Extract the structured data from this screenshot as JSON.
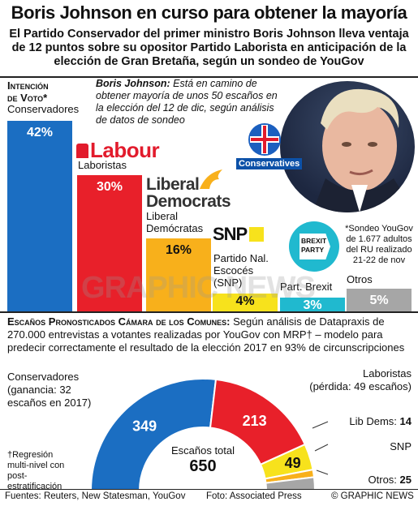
{
  "header": {
    "title": "Boris Johnson en curso para obtener la mayoría",
    "subtitle": "El Partido Conservador del primer ministro Boris Johnson lleva ventaja de 12 puntos sobre su opositor Partido Laborista en anticipación de la elección de Gran Bretaña, según un sondeo de YouGov"
  },
  "poll": {
    "label_line1": "Intención",
    "label_line2": "de Voto*",
    "quote_name": "Boris Johnson:",
    "quote_text": "Está en camino de obtener mayoría de unos 50 escaños en la elección del 12 de dic, según análisis de datos de sondeo",
    "footnote": "*Sondeo YouGov de 1.677 adultos del RU realizado 21-22 de nov",
    "photo_caption": "Conservatives"
  },
  "logos": {
    "labour": "Labour",
    "libdem_line1": "Liberal",
    "libdem_line2": "Democrats",
    "snp": "SNP",
    "brexit_line1": "BREXIT",
    "brexit_line2": "PARTY"
  },
  "seats": {
    "label": "Escaños Pronosticados Cámara de los Comunes:",
    "desc_inline": "Según análisis de",
    "desc_rest": "Datapraxis de 270.000 entrevistas a votantes realizadas por YouGov con MRP† – modelo para predecir correctamente el resultado de la elección 2017 en 93% de circunscripciones",
    "con_note": "Conservadores (ganancia: 32 escaños en 2017)",
    "lab_name": "Laboristas",
    "lab_note": "(pérdida: 49 escaños)",
    "ld_label": "Lib Dems: ",
    "snp_label": "SNP",
    "oth_label": "Otros: ",
    "total_label": "Escaños total",
    "total_value": "650",
    "mrp_note": "†Regresión multi-nivel con post-estratificación"
  },
  "footer": {
    "sources": "Fuentes: Reuters, New Statesman, YouGov",
    "photo": "Foto: Associated Press",
    "credit": "© GRAPHIC NEWS"
  },
  "watermark": "GRAPHIC NEWS",
  "colors": {
    "con": "#1b6ec2",
    "lab": "#e8202a",
    "ld": "#f8b01b",
    "snp": "#f7e21c",
    "brexit": "#20b9cf",
    "oth": "#a6a6a6"
  },
  "chart_data": [
    {
      "type": "bar",
      "title": "Intención de Voto*",
      "categories": [
        "Conservadores",
        "Laboristas",
        "Liberal Demócratas",
        "Partido Nal. Escocés (SNP)",
        "Part. Brexit",
        "Otros"
      ],
      "values": [
        42,
        30,
        16,
        4,
        3,
        5
      ],
      "labels": [
        "42%",
        "30%",
        "16%",
        "4%",
        "3%",
        "5%"
      ]
    },
    {
      "type": "pie",
      "title": "Escaños Pronosticados Cámara de los Comunes",
      "categories": [
        "Conservadores",
        "Laboristas",
        "Lib Dems",
        "SNP",
        "Otros"
      ],
      "values": [
        349,
        213,
        14,
        49,
        25
      ],
      "labels": [
        "349",
        "213",
        "14",
        "49",
        "25"
      ],
      "total": 650
    }
  ]
}
